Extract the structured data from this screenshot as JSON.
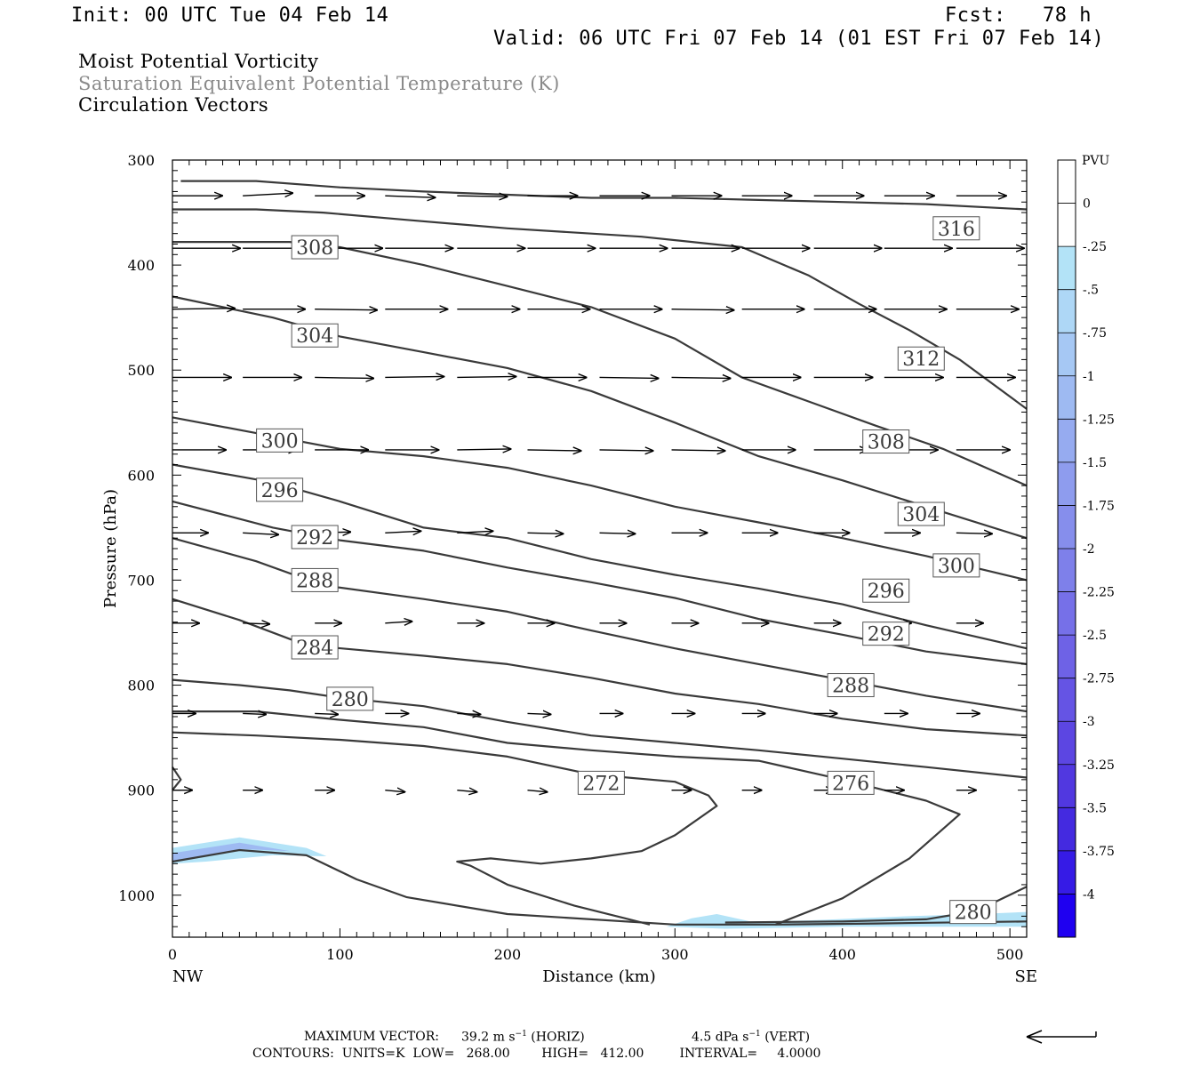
{
  "header": {
    "init": "Init: 00 UTC Tue 04 Feb 14",
    "fcst": "Fcst:   78 h",
    "valid": "Valid: 06 UTC Fri 07 Feb 14 (01 EST Fri 07 Feb 14)"
  },
  "fields": {
    "line1": "Moist Potential Vorticity",
    "line2": "Saturation Equivalent Potential Temperature (K)",
    "line3": "Circulation Vectors"
  },
  "footer": {
    "max_vector_label": "MAXIMUM VECTOR:",
    "horiz_value": "39.2 m s",
    "horiz_tag": "(HORIZ)",
    "vert_value": "4.5 dPa s",
    "vert_tag": "(VERT)",
    "contours_line": "CONTOURS:  UNITS=K  LOW=   268.00        HIGH=   412.00         INTERVAL=     4.0000"
  },
  "chart_data": {
    "type": "cross-section",
    "xlabel": "Distance (km)",
    "ylabel": "Pressure (hPa)",
    "xlim": [
      0,
      510
    ],
    "ylim": [
      1040,
      300
    ],
    "x_ticks": [
      "0",
      "100",
      "200",
      "300",
      "400",
      "500"
    ],
    "y_ticks": [
      "300",
      "400",
      "500",
      "600",
      "700",
      "800",
      "900",
      "1000"
    ],
    "x_end_left": "NW",
    "x_end_right": "SE",
    "colorbar": {
      "unit": "PVU",
      "labels": [
        "0",
        "-.25",
        "-.5",
        "-.75",
        "-1",
        "-1.25",
        "-1.5",
        "-1.75",
        "-2",
        "-2.25",
        "-2.5",
        "-2.75",
        "-3",
        "-3.25",
        "-3.5",
        "-3.75",
        "-4"
      ],
      "colors": [
        "#ffffff",
        "#b3e3f7",
        "#aed7f6",
        "#a6c8f4",
        "#9ebaf2",
        "#96abf0",
        "#8e9cee",
        "#868eec",
        "#7e80ea",
        "#7670e8",
        "#6e62e6",
        "#6554e4",
        "#5c46e2",
        "#5138e0",
        "#442ae0",
        "#361be6",
        "#1f00f0"
      ]
    },
    "theta_es_contours": [
      {
        "label": "316",
        "points": [
          [
            5,
            320
          ],
          [
            50,
            320
          ],
          [
            100,
            326
          ],
          [
            150,
            330
          ],
          [
            200,
            333
          ],
          [
            250,
            336
          ],
          [
            300,
            336
          ],
          [
            350,
            338
          ],
          [
            400,
            340
          ],
          [
            450,
            342
          ],
          [
            510,
            347
          ]
        ]
      },
      {
        "label": "312",
        "points": [
          [
            0,
            347
          ],
          [
            50,
            347
          ],
          [
            90,
            350
          ],
          [
            140,
            357
          ],
          [
            200,
            365
          ],
          [
            280,
            373
          ],
          [
            340,
            383
          ],
          [
            380,
            410
          ],
          [
            410,
            437
          ],
          [
            440,
            462
          ],
          [
            470,
            490
          ],
          [
            510,
            537
          ]
        ]
      },
      {
        "label": "308",
        "points": [
          [
            0,
            378
          ],
          [
            70,
            378
          ],
          [
            100,
            383
          ],
          [
            150,
            400
          ],
          [
            200,
            420
          ],
          [
            250,
            440
          ],
          [
            300,
            470
          ],
          [
            340,
            507
          ],
          [
            380,
            530
          ],
          [
            420,
            553
          ],
          [
            460,
            575
          ],
          [
            510,
            610
          ]
        ]
      },
      {
        "label": "304",
        "points": [
          [
            0,
            430
          ],
          [
            60,
            450
          ],
          [
            100,
            468
          ],
          [
            150,
            483
          ],
          [
            200,
            498
          ],
          [
            250,
            520
          ],
          [
            300,
            550
          ],
          [
            350,
            582
          ],
          [
            400,
            605
          ],
          [
            450,
            630
          ],
          [
            510,
            660
          ]
        ]
      },
      {
        "label": "300",
        "points": [
          [
            0,
            545
          ],
          [
            50,
            560
          ],
          [
            100,
            575
          ],
          [
            150,
            582
          ],
          [
            200,
            593
          ],
          [
            250,
            610
          ],
          [
            300,
            630
          ],
          [
            350,
            645
          ],
          [
            400,
            660
          ],
          [
            450,
            677
          ],
          [
            510,
            700
          ]
        ]
      },
      {
        "label": "296",
        "points": [
          [
            0,
            590
          ],
          [
            60,
            607
          ],
          [
            100,
            625
          ],
          [
            150,
            650
          ],
          [
            200,
            660
          ],
          [
            250,
            680
          ],
          [
            300,
            695
          ],
          [
            350,
            708
          ],
          [
            400,
            723
          ],
          [
            450,
            743
          ],
          [
            510,
            765
          ]
        ]
      },
      {
        "label": "292",
        "points": [
          [
            0,
            625
          ],
          [
            60,
            650
          ],
          [
            100,
            662
          ],
          [
            150,
            672
          ],
          [
            200,
            688
          ],
          [
            250,
            702
          ],
          [
            300,
            717
          ],
          [
            350,
            737
          ],
          [
            400,
            752
          ],
          [
            450,
            768
          ],
          [
            510,
            780
          ]
        ]
      },
      {
        "label": "288",
        "points": [
          [
            0,
            660
          ],
          [
            50,
            682
          ],
          [
            90,
            705
          ],
          [
            150,
            718
          ],
          [
            200,
            730
          ],
          [
            250,
            748
          ],
          [
            300,
            765
          ],
          [
            350,
            780
          ],
          [
            400,
            795
          ],
          [
            450,
            810
          ],
          [
            510,
            825
          ]
        ]
      },
      {
        "label": "284",
        "points": [
          [
            0,
            718
          ],
          [
            40,
            738
          ],
          [
            80,
            762
          ],
          [
            150,
            772
          ],
          [
            200,
            780
          ],
          [
            250,
            793
          ],
          [
            300,
            808
          ],
          [
            350,
            818
          ],
          [
            400,
            832
          ],
          [
            450,
            842
          ],
          [
            510,
            848
          ]
        ]
      },
      {
        "label": "280",
        "points": [
          [
            0,
            795
          ],
          [
            40,
            800
          ],
          [
            70,
            805
          ],
          [
            100,
            812
          ],
          [
            150,
            820
          ],
          [
            200,
            835
          ],
          [
            250,
            848
          ],
          [
            300,
            855
          ],
          [
            350,
            862
          ],
          [
            400,
            870
          ],
          [
            450,
            878
          ],
          [
            510,
            888
          ]
        ]
      },
      {
        "label": "276",
        "points": [
          [
            0,
            825
          ],
          [
            50,
            825
          ],
          [
            100,
            833
          ],
          [
            150,
            840
          ],
          [
            200,
            855
          ],
          [
            250,
            862
          ],
          [
            300,
            868
          ],
          [
            350,
            872
          ],
          [
            400,
            890
          ],
          [
            450,
            910
          ],
          [
            470,
            923
          ],
          [
            440,
            965
          ],
          [
            400,
            1003
          ],
          [
            360,
            1028
          ]
        ]
      },
      {
        "label": "272",
        "points": [
          [
            0,
            845
          ],
          [
            50,
            848
          ],
          [
            100,
            852
          ],
          [
            150,
            858
          ],
          [
            200,
            868
          ],
          [
            250,
            885
          ],
          [
            300,
            892
          ],
          [
            320,
            905
          ],
          [
            325,
            915
          ],
          [
            300,
            943
          ],
          [
            280,
            958
          ],
          [
            250,
            965
          ],
          [
            220,
            970
          ],
          [
            190,
            965
          ],
          [
            170,
            968
          ],
          [
            178,
            972
          ],
          [
            200,
            990
          ],
          [
            240,
            1010
          ],
          [
            270,
            1022
          ],
          [
            285,
            1028
          ]
        ]
      },
      {
        "label": "280",
        "points": [
          [
            330,
            1026
          ],
          [
            400,
            1025
          ],
          [
            450,
            1023
          ],
          [
            480,
            1015
          ],
          [
            510,
            992
          ]
        ]
      },
      {
        "label": "",
        "points": [
          [
            0,
            968
          ],
          [
            40,
            957
          ],
          [
            80,
            962
          ],
          [
            110,
            985
          ],
          [
            140,
            1002
          ],
          [
            200,
            1018
          ],
          [
            300,
            1028
          ],
          [
            360,
            1028
          ],
          [
            420,
            1027
          ],
          [
            510,
            1025
          ]
        ]
      },
      {
        "label": "",
        "points": [
          [
            0,
            900
          ],
          [
            5,
            890
          ],
          [
            0,
            878
          ]
        ]
      }
    ],
    "contour_labels": [
      {
        "text": "308",
        "x": 85,
        "p": 383
      },
      {
        "text": "304",
        "x": 85,
        "p": 467
      },
      {
        "text": "300",
        "x": 64,
        "p": 567
      },
      {
        "text": "296",
        "x": 64,
        "p": 614
      },
      {
        "text": "292",
        "x": 85,
        "p": 659
      },
      {
        "text": "288",
        "x": 85,
        "p": 700
      },
      {
        "text": "284",
        "x": 85,
        "p": 764
      },
      {
        "text": "280",
        "x": 106,
        "p": 813
      },
      {
        "text": "272",
        "x": 256,
        "p": 893
      },
      {
        "text": "276",
        "x": 405,
        "p": 893
      },
      {
        "text": "288",
        "x": 405,
        "p": 800
      },
      {
        "text": "292",
        "x": 426,
        "p": 751
      },
      {
        "text": "296",
        "x": 426,
        "p": 710
      },
      {
        "text": "300",
        "x": 468,
        "p": 686
      },
      {
        "text": "304",
        "x": 447,
        "p": 637
      },
      {
        "text": "308",
        "x": 426,
        "p": 568
      },
      {
        "text": "312",
        "x": 447,
        "p": 489
      },
      {
        "text": "316",
        "x": 468,
        "p": 365
      },
      {
        "text": "280",
        "x": 478,
        "p": 1016
      }
    ],
    "pv_regions": [
      {
        "value": -0.25,
        "points": [
          [
            0,
            955
          ],
          [
            40,
            945
          ],
          [
            80,
            955
          ],
          [
            92,
            963
          ],
          [
            60,
            962
          ],
          [
            20,
            968
          ],
          [
            0,
            970
          ]
        ]
      },
      {
        "value": -1.0,
        "points": [
          [
            0,
            960
          ],
          [
            40,
            950
          ],
          [
            70,
            958
          ],
          [
            40,
            956
          ],
          [
            10,
            966
          ],
          [
            0,
            967
          ]
        ]
      },
      {
        "value": -0.25,
        "points": [
          [
            295,
            1030
          ],
          [
            310,
            1022
          ],
          [
            325,
            1018
          ],
          [
            345,
            1025
          ],
          [
            380,
            1024
          ],
          [
            440,
            1020
          ],
          [
            480,
            1018
          ],
          [
            510,
            1016
          ],
          [
            510,
            1030
          ],
          [
            400,
            1030
          ],
          [
            330,
            1032
          ]
        ]
      }
    ],
    "vectors": {
      "x": [
        0,
        42,
        85,
        127,
        170,
        212,
        255,
        298,
        340,
        383,
        425,
        468
      ],
      "rows": [
        {
          "p": 334,
          "dx": [
            28,
            28,
            28,
            28,
            28,
            28,
            28,
            28,
            28,
            28,
            28,
            28
          ],
          "dy": [
            0,
            -3,
            0,
            2,
            1,
            0,
            0,
            0,
            0,
            0,
            0,
            0
          ]
        },
        {
          "p": 384,
          "dx": [
            38,
            38,
            38,
            38,
            38,
            38,
            38,
            38,
            38,
            38,
            38,
            38
          ],
          "dy": [
            0,
            0,
            0,
            0,
            0,
            0,
            0,
            0,
            0,
            0,
            0,
            0
          ]
        },
        {
          "p": 442,
          "dx": [
            35,
            35,
            35,
            35,
            35,
            35,
            35,
            35,
            35,
            35,
            35,
            35
          ],
          "dy": [
            -1,
            0,
            1,
            0,
            0,
            0,
            0,
            1,
            0,
            0,
            0,
            0
          ]
        },
        {
          "p": 507,
          "dx": [
            33,
            33,
            33,
            33,
            33,
            33,
            33,
            33,
            33,
            33,
            33,
            33
          ],
          "dy": [
            0,
            0,
            1,
            -1,
            -1,
            0,
            1,
            1,
            0,
            0,
            0,
            0
          ]
        },
        {
          "p": 576,
          "dx": [
            30,
            30,
            30,
            30,
            30,
            30,
            30,
            30,
            30,
            30,
            30,
            30
          ],
          "dy": [
            0,
            0,
            0,
            0,
            -1,
            1,
            1,
            1,
            0,
            0,
            0,
            0
          ]
        },
        {
          "p": 655,
          "dx": [
            20,
            20,
            20,
            20,
            20,
            20,
            20,
            20,
            20,
            20,
            20,
            20
          ],
          "dy": [
            0,
            2,
            -1,
            -2,
            -2,
            1,
            1,
            0,
            0,
            0,
            0,
            1
          ]
        },
        {
          "p": 741,
          "dx": [
            15,
            15,
            15,
            15,
            15,
            15,
            15,
            15,
            15,
            15,
            15,
            15
          ],
          "dy": [
            0,
            1,
            0,
            -2,
            0,
            0,
            0,
            0,
            0,
            0,
            0,
            0
          ]
        },
        {
          "p": 827,
          "dx": [
            13,
            13,
            13,
            13,
            13,
            13,
            13,
            13,
            13,
            13,
            13,
            13
          ],
          "dy": [
            0,
            1,
            1,
            0,
            1,
            1,
            0,
            0,
            0,
            0,
            0,
            0
          ]
        },
        {
          "p": 900,
          "dx": [
            11,
            11,
            11,
            11,
            11,
            11,
            11,
            11,
            11,
            11,
            11,
            11
          ],
          "dy": [
            0,
            0,
            0,
            2,
            2,
            2,
            0,
            0,
            0,
            0,
            0,
            0
          ]
        }
      ]
    }
  }
}
